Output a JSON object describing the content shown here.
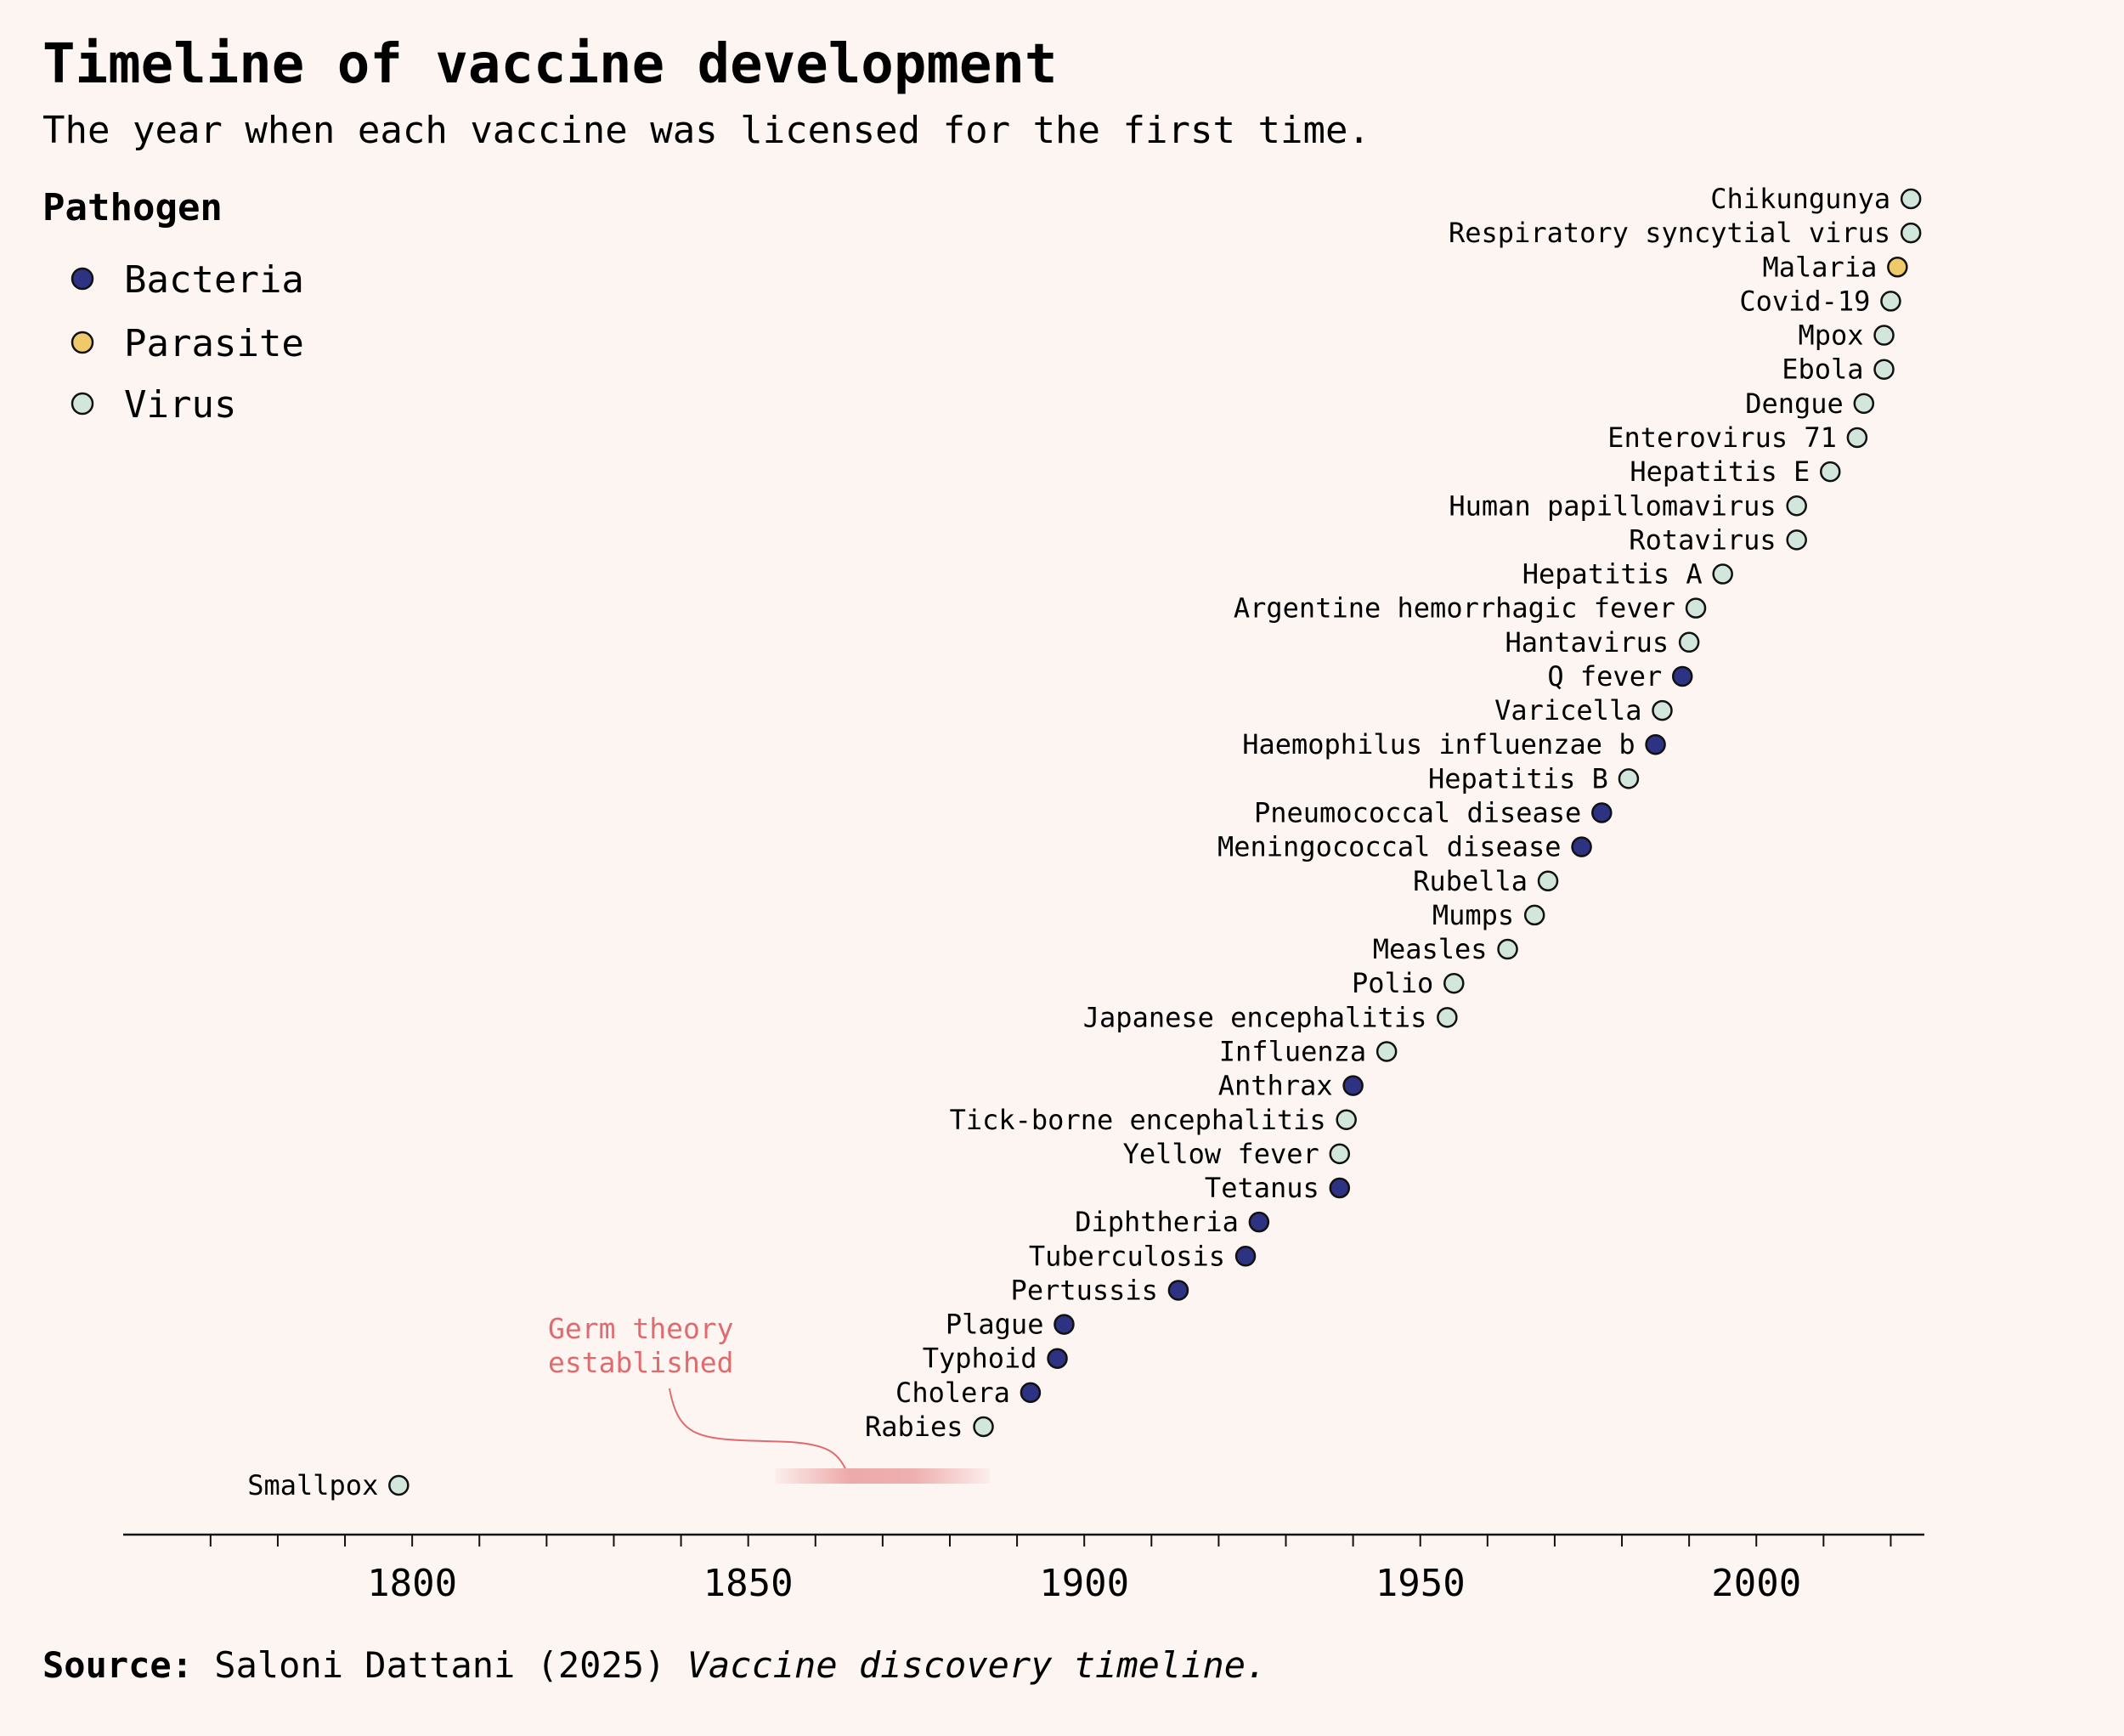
{
  "chart_data": {
    "type": "scatter",
    "title": "Timeline of vaccine development",
    "subtitle": "The year when each vaccine was licensed for the first time.",
    "legend_title": "Pathogen",
    "legend_position": "top-left",
    "legend": [
      {
        "key": "Bacteria",
        "label": "Bacteria",
        "color": "#2e3282"
      },
      {
        "key": "Parasite",
        "label": "Parasite",
        "color": "#f0c96a"
      },
      {
        "key": "Virus",
        "label": "Virus",
        "color": "#d3e6dc"
      }
    ],
    "xlim": [
      1757,
      2025
    ],
    "x_ticks": [
      1800,
      1850,
      1900,
      1950,
      2000
    ],
    "x_minor_step": 10,
    "annotation": {
      "lines": [
        "Germ theory",
        "established"
      ],
      "x_range": [
        1854,
        1886
      ],
      "color": "#e06b6f"
    },
    "points": [
      {
        "name": "Smallpox",
        "year": 1798,
        "type": "Virus"
      },
      {
        "name": "Rabies",
        "year": 1885,
        "type": "Virus"
      },
      {
        "name": "Cholera",
        "year": 1892,
        "type": "Bacteria"
      },
      {
        "name": "Typhoid",
        "year": 1896,
        "type": "Bacteria"
      },
      {
        "name": "Plague",
        "year": 1897,
        "type": "Bacteria"
      },
      {
        "name": "Pertussis",
        "year": 1914,
        "type": "Bacteria"
      },
      {
        "name": "Tuberculosis",
        "year": 1924,
        "type": "Bacteria"
      },
      {
        "name": "Diphtheria",
        "year": 1926,
        "type": "Bacteria"
      },
      {
        "name": "Tetanus",
        "year": 1938,
        "type": "Bacteria"
      },
      {
        "name": "Yellow fever",
        "year": 1938,
        "type": "Virus"
      },
      {
        "name": "Tick-borne encephalitis",
        "year": 1939,
        "type": "Virus"
      },
      {
        "name": "Anthrax",
        "year": 1940,
        "type": "Bacteria"
      },
      {
        "name": "Influenza",
        "year": 1945,
        "type": "Virus"
      },
      {
        "name": "Japanese encephalitis",
        "year": 1954,
        "type": "Virus"
      },
      {
        "name": "Polio",
        "year": 1955,
        "type": "Virus"
      },
      {
        "name": "Measles",
        "year": 1963,
        "type": "Virus"
      },
      {
        "name": "Mumps",
        "year": 1967,
        "type": "Virus"
      },
      {
        "name": "Rubella",
        "year": 1969,
        "type": "Virus"
      },
      {
        "name": "Meningococcal disease",
        "year": 1974,
        "type": "Bacteria"
      },
      {
        "name": "Pneumococcal disease",
        "year": 1977,
        "type": "Bacteria"
      },
      {
        "name": "Hepatitis B",
        "year": 1981,
        "type": "Virus"
      },
      {
        "name": "Haemophilus influenzae b",
        "year": 1985,
        "type": "Bacteria"
      },
      {
        "name": "Varicella",
        "year": 1986,
        "type": "Virus"
      },
      {
        "name": "Q fever",
        "year": 1989,
        "type": "Bacteria"
      },
      {
        "name": "Hantavirus",
        "year": 1990,
        "type": "Virus"
      },
      {
        "name": "Argentine hemorrhagic fever",
        "year": 1991,
        "type": "Virus"
      },
      {
        "name": "Hepatitis A",
        "year": 1995,
        "type": "Virus"
      },
      {
        "name": "Rotavirus",
        "year": 2006,
        "type": "Virus"
      },
      {
        "name": "Human papillomavirus",
        "year": 2006,
        "type": "Virus"
      },
      {
        "name": "Hepatitis E",
        "year": 2011,
        "type": "Virus"
      },
      {
        "name": "Enterovirus 71",
        "year": 2015,
        "type": "Virus"
      },
      {
        "name": "Dengue",
        "year": 2016,
        "type": "Virus"
      },
      {
        "name": "Ebola",
        "year": 2019,
        "type": "Virus"
      },
      {
        "name": "Mpox",
        "year": 2019,
        "type": "Virus"
      },
      {
        "name": "Covid-19",
        "year": 2020,
        "type": "Virus"
      },
      {
        "name": "Malaria",
        "year": 2021,
        "type": "Parasite"
      },
      {
        "name": "Respiratory syncytial virus",
        "year": 2023,
        "type": "Virus"
      },
      {
        "name": "Chikungunya",
        "year": 2023,
        "type": "Virus"
      }
    ]
  },
  "source": {
    "label": "Source:",
    "text": " Saloni Dattani (2025) ",
    "title": "Vaccine discovery timeline."
  }
}
